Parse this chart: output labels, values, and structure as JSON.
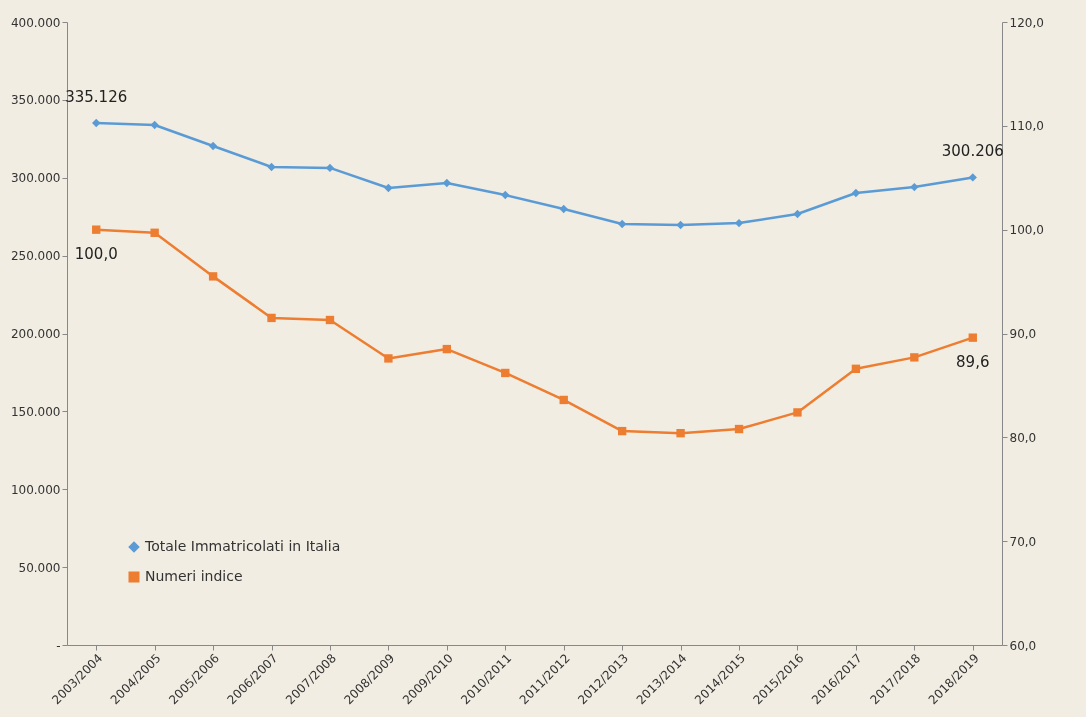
{
  "chart_data": {
    "type": "line",
    "categories": [
      "2003/2004",
      "2004/2005",
      "2005/2006",
      "2006/2007",
      "2007/2008",
      "2008/2009",
      "2009/2010",
      "2010/2011",
      "2011/2012",
      "2012/2013",
      "2013/2014",
      "2014/2015",
      "2015/2016",
      "2016/2017",
      "2017/2018",
      "2018/2019"
    ],
    "series": [
      {
        "name": "Totale Immatricolati in Italia",
        "color": "#5b9bd5",
        "marker": "diamond",
        "values": [
          335126,
          333900,
          320400,
          306900,
          306300,
          293400,
          296600,
          288900,
          279900,
          270300,
          269700,
          270900,
          276700,
          290200,
          294000,
          300206
        ],
        "value_labels": [
          "335.126",
          null,
          null,
          null,
          null,
          null,
          null,
          null,
          null,
          null,
          null,
          null,
          null,
          null,
          null,
          "300.206"
        ]
      },
      {
        "name": "Numeri indice",
        "color": "#ed7d31",
        "marker": "square",
        "axis": "y2",
        "values": [
          100.0,
          99.7,
          95.5,
          91.5,
          91.3,
          87.6,
          88.5,
          86.2,
          83.6,
          80.6,
          80.4,
          80.8,
          82.4,
          86.6,
          87.7,
          89.6
        ],
        "value_labels": [
          "100,0",
          null,
          null,
          null,
          null,
          null,
          null,
          null,
          null,
          null,
          null,
          null,
          null,
          null,
          null,
          "89,6"
        ]
      }
    ],
    "ylim": [
      0,
      400000
    ],
    "yticks": [
      {
        "value": 0,
        "label": "-"
      },
      {
        "value": 50000,
        "label": "50.000"
      },
      {
        "value": 100000,
        "label": "100.000"
      },
      {
        "value": 150000,
        "label": "150.000"
      },
      {
        "value": 200000,
        "label": "200.000"
      },
      {
        "value": 250000,
        "label": "250.000"
      },
      {
        "value": 300000,
        "label": "300.000"
      },
      {
        "value": 350000,
        "label": "350.000"
      },
      {
        "value": 400000,
        "label": "400.000"
      }
    ],
    "y2lim": [
      60,
      120
    ],
    "y2ticks": [
      {
        "value": 60,
        "label": "60,0"
      },
      {
        "value": 70,
        "label": "70,0"
      },
      {
        "value": 80,
        "label": "80,0"
      },
      {
        "value": 90,
        "label": "90,0"
      },
      {
        "value": 100,
        "label": "100,0"
      },
      {
        "value": 110,
        "label": "110,0"
      },
      {
        "value": 120,
        "label": "120,0"
      }
    ],
    "grid": false,
    "legend": "bottom left",
    "line_style": "solid"
  }
}
